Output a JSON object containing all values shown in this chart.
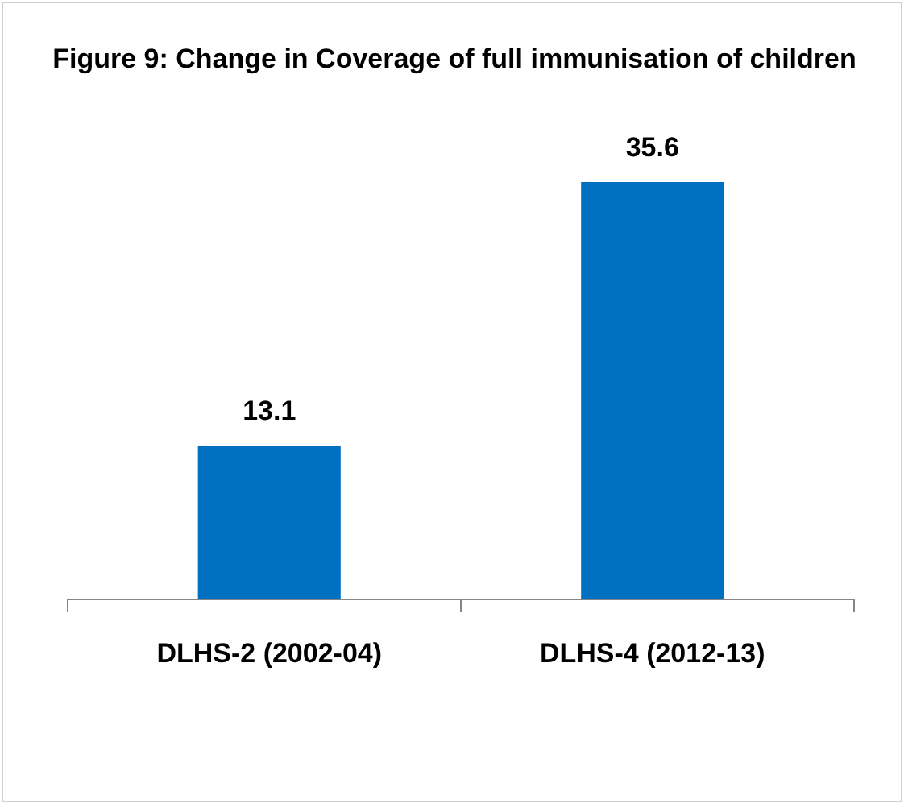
{
  "chart_data": {
    "type": "bar",
    "title": "Figure 9: Change in Coverage of full immunisation of children",
    "categories": [
      "DLHS-2 (2002-04)",
      "DLHS-4 (2012-13)"
    ],
    "values": [
      13.1,
      35.6
    ],
    "color": "#0070c0",
    "data_labels": true
  }
}
